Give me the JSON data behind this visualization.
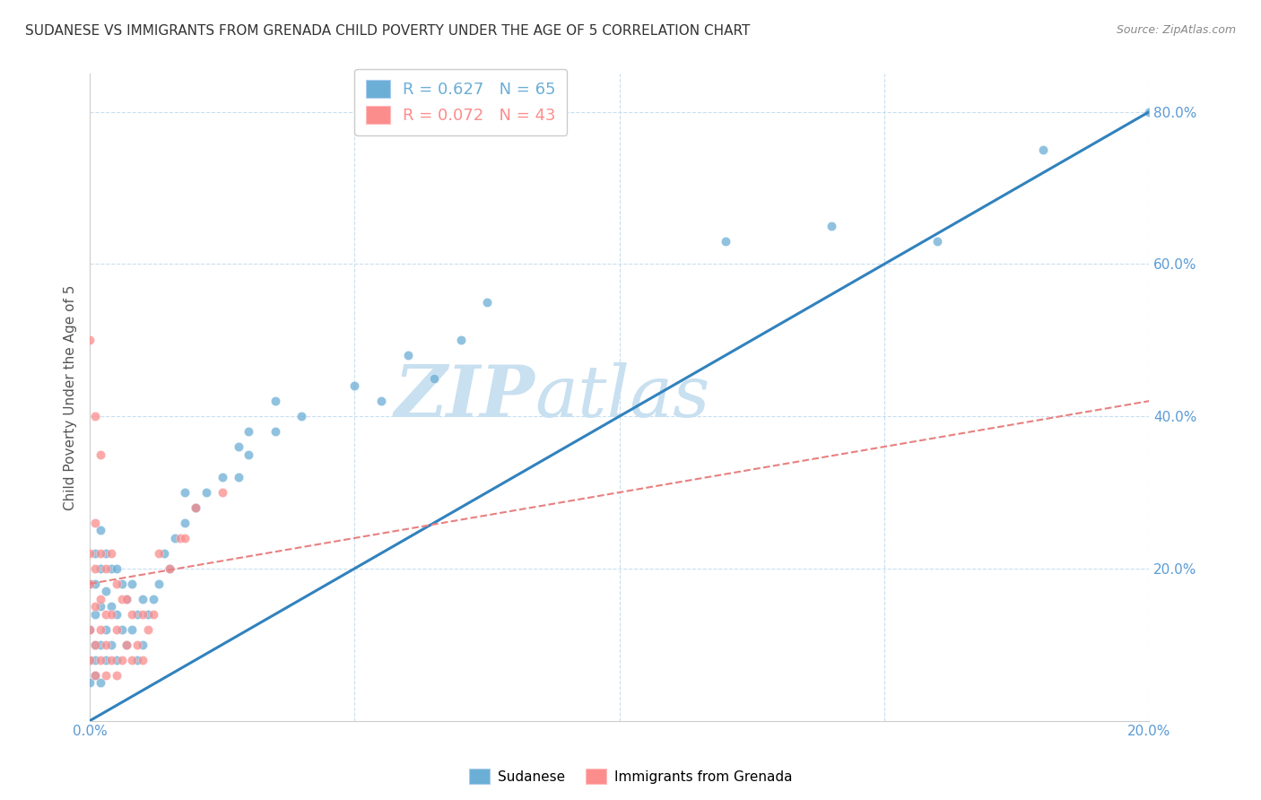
{
  "title": "SUDANESE VS IMMIGRANTS FROM GRENADA CHILD POVERTY UNDER THE AGE OF 5 CORRELATION CHART",
  "source": "Source: ZipAtlas.com",
  "ylabel_label": "Child Poverty Under the Age of 5",
  "legend_entries": [
    {
      "label": "R = 0.627   N = 65",
      "color": "#6baed6"
    },
    {
      "label": "R = 0.072   N = 43",
      "color": "#fc8d8d"
    }
  ],
  "sudanese_x": [
    0.0,
    0.0,
    0.0,
    0.0,
    0.001,
    0.001,
    0.001,
    0.001,
    0.001,
    0.001,
    0.002,
    0.002,
    0.002,
    0.002,
    0.002,
    0.003,
    0.003,
    0.003,
    0.003,
    0.004,
    0.004,
    0.004,
    0.005,
    0.005,
    0.005,
    0.006,
    0.006,
    0.007,
    0.007,
    0.008,
    0.008,
    0.009,
    0.009,
    0.01,
    0.01,
    0.011,
    0.012,
    0.013,
    0.014,
    0.015,
    0.016,
    0.018,
    0.02,
    0.022,
    0.025,
    0.028,
    0.03,
    0.035,
    0.03,
    0.04,
    0.028,
    0.035,
    0.02,
    0.018,
    0.07,
    0.065,
    0.075,
    0.06,
    0.05,
    0.055,
    0.12,
    0.14,
    0.16,
    0.18,
    0.2
  ],
  "sudanese_y": [
    0.05,
    0.08,
    0.12,
    0.18,
    0.06,
    0.1,
    0.14,
    0.18,
    0.22,
    0.08,
    0.05,
    0.1,
    0.15,
    0.2,
    0.25,
    0.08,
    0.12,
    0.17,
    0.22,
    0.1,
    0.15,
    0.2,
    0.08,
    0.14,
    0.2,
    0.12,
    0.18,
    0.1,
    0.16,
    0.12,
    0.18,
    0.08,
    0.14,
    0.1,
    0.16,
    0.14,
    0.16,
    0.18,
    0.22,
    0.2,
    0.24,
    0.26,
    0.28,
    0.3,
    0.32,
    0.36,
    0.38,
    0.42,
    0.35,
    0.4,
    0.32,
    0.38,
    0.28,
    0.3,
    0.5,
    0.45,
    0.55,
    0.48,
    0.44,
    0.42,
    0.63,
    0.65,
    0.63,
    0.75,
    0.8
  ],
  "grenada_x": [
    0.0,
    0.0,
    0.0,
    0.0,
    0.0,
    0.001,
    0.001,
    0.001,
    0.001,
    0.001,
    0.001,
    0.002,
    0.002,
    0.002,
    0.002,
    0.002,
    0.003,
    0.003,
    0.003,
    0.003,
    0.004,
    0.004,
    0.004,
    0.005,
    0.005,
    0.005,
    0.006,
    0.006,
    0.007,
    0.007,
    0.008,
    0.008,
    0.009,
    0.01,
    0.01,
    0.011,
    0.012,
    0.013,
    0.015,
    0.017,
    0.018,
    0.02,
    0.025
  ],
  "grenada_y": [
    0.08,
    0.12,
    0.18,
    0.22,
    0.5,
    0.06,
    0.1,
    0.15,
    0.2,
    0.26,
    0.4,
    0.08,
    0.12,
    0.16,
    0.22,
    0.35,
    0.06,
    0.1,
    0.14,
    0.2,
    0.08,
    0.14,
    0.22,
    0.06,
    0.12,
    0.18,
    0.08,
    0.16,
    0.1,
    0.16,
    0.08,
    0.14,
    0.1,
    0.08,
    0.14,
    0.12,
    0.14,
    0.22,
    0.2,
    0.24,
    0.24,
    0.28,
    0.3
  ],
  "sudanese_color": "#6baed6",
  "grenada_color": "#fc8d8d",
  "trend_sudanese_color": "#3182bd",
  "trend_grenada_color": "#e88080",
  "watermark_text": "ZIP",
  "watermark_text2": "atlas",
  "watermark_color": "#c8e0f0",
  "title_color": "#333333",
  "axis_color": "#5b9bd5",
  "grid_color": "#c8dff0",
  "background_color": "#ffffff",
  "xlim": [
    0.0,
    0.2
  ],
  "ylim": [
    0.0,
    0.85
  ],
  "trend_s_x0": 0.0,
  "trend_s_y0": 0.0,
  "trend_s_x1": 0.2,
  "trend_s_y1": 0.8,
  "trend_g_x0": 0.0,
  "trend_g_y0": 0.18,
  "trend_g_x1": 0.2,
  "trend_g_y1": 0.42
}
